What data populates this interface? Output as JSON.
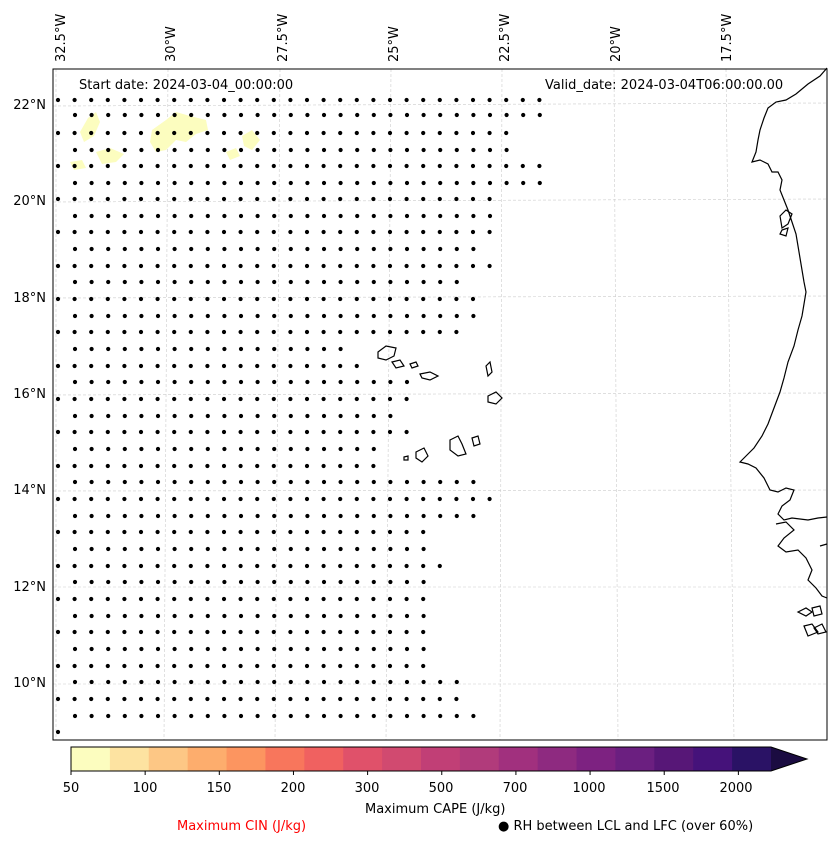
{
  "map": {
    "start_date_text": "Start date: 2024-03-04_00:00:00",
    "valid_date_text": "Valid_date: 2024-03-04T06:00:00.00",
    "lon_labels": [
      "32.5°W",
      "30°W",
      "27.5°W",
      "25°W",
      "22.5°W",
      "20°W",
      "17.5°W"
    ],
    "lat_labels": [
      "22°N",
      "20°N",
      "18°N",
      "16°N",
      "14°N",
      "12°N",
      "10°N"
    ],
    "coastline_color": "#000000",
    "gridline_color": "#cccccc",
    "dot_color": "#000000",
    "low_cape_fill_color": "#fcfdbf"
  },
  "colorbar": {
    "label": "Maximum CAPE (J/kg)",
    "tick_labels": [
      "50",
      "100",
      "150",
      "200",
      "300",
      "500",
      "700",
      "1000",
      "1500",
      "2000"
    ],
    "colors": [
      "#fcfdbf",
      "#fde3a1",
      "#fdc785",
      "#fdad6d",
      "#fc9560",
      "#f8765c",
      "#f06160",
      "#e0516a",
      "#d14a70",
      "#c13f76",
      "#b13b7b",
      "#a1307e",
      "#8e2a80",
      "#7d2281",
      "#6b1f80",
      "#571777",
      "#45127a",
      "#2a1265",
      "#1b0c41"
    ]
  },
  "legend": {
    "cin_label": "Maximum CIN (J/kg)",
    "cin_color": "#ff0000",
    "rh_marker": "●",
    "rh_label": "RH between LCL and LFC (over 60%)"
  }
}
